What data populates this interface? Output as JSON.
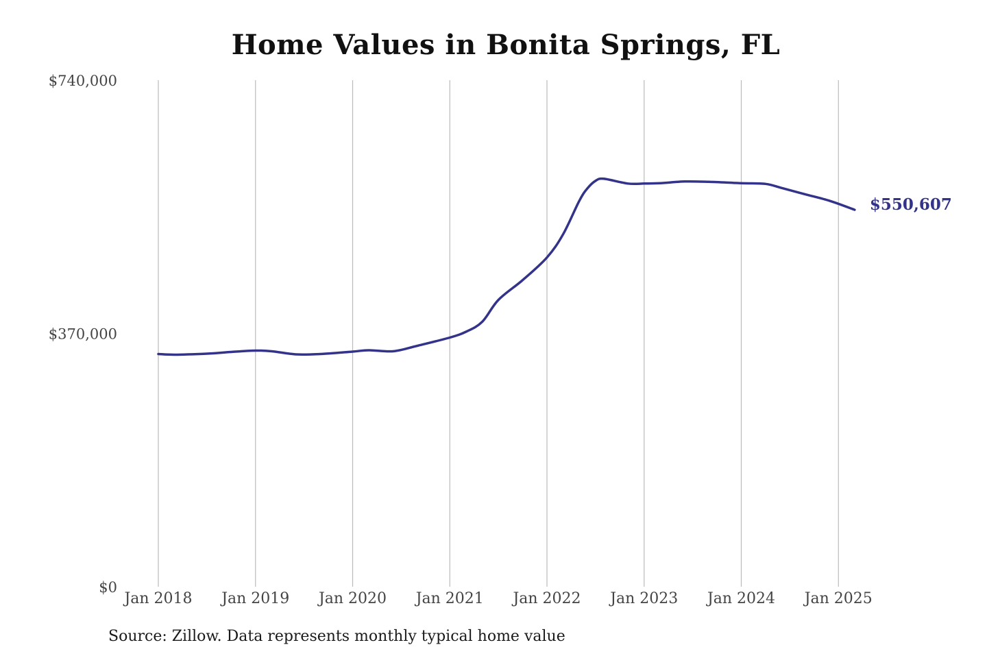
{
  "title": "Home Values in Bonita Springs, FL",
  "source": "Source: Zillow. Data represents monthly typical home value",
  "colors": {
    "line": "#33338a",
    "grid": "#bbbbbb"
  },
  "chart_data": {
    "type": "line",
    "title": "Home Values in Bonita Springs, FL",
    "xlabel": "",
    "ylabel": "",
    "ylim": [
      0,
      740000
    ],
    "y_ticks": [
      {
        "value": 0,
        "label": "$0"
      },
      {
        "value": 370000,
        "label": "$370,000"
      },
      {
        "value": 740000,
        "label": "$740,000"
      }
    ],
    "x_ticks": [
      {
        "value": "2018-01",
        "label": "Jan 2018"
      },
      {
        "value": "2019-01",
        "label": "Jan 2019"
      },
      {
        "value": "2020-01",
        "label": "Jan 2020"
      },
      {
        "value": "2021-01",
        "label": "Jan 2021"
      },
      {
        "value": "2022-01",
        "label": "Jan 2022"
      },
      {
        "value": "2023-01",
        "label": "Jan 2023"
      },
      {
        "value": "2024-01",
        "label": "Jan 2024"
      },
      {
        "value": "2025-01",
        "label": "Jan 2025"
      }
    ],
    "grid": "vertical",
    "end_label": "$550,607",
    "series": [
      {
        "name": "",
        "points": [
          {
            "x": "2018-01",
            "y": 340000
          },
          {
            "x": "2018-03",
            "y": 339000
          },
          {
            "x": "2018-07",
            "y": 340500
          },
          {
            "x": "2018-10",
            "y": 343000
          },
          {
            "x": "2019-01",
            "y": 345000
          },
          {
            "x": "2019-03",
            "y": 344000
          },
          {
            "x": "2019-06",
            "y": 339500
          },
          {
            "x": "2019-09",
            "y": 340000
          },
          {
            "x": "2020-01",
            "y": 343500
          },
          {
            "x": "2020-03",
            "y": 345500
          },
          {
            "x": "2020-06",
            "y": 344000
          },
          {
            "x": "2020-09",
            "y": 352000
          },
          {
            "x": "2021-01",
            "y": 364000
          },
          {
            "x": "2021-03",
            "y": 372500
          },
          {
            "x": "2021-05",
            "y": 387000
          },
          {
            "x": "2021-07",
            "y": 419000
          },
          {
            "x": "2021-10",
            "y": 448000
          },
          {
            "x": "2022-01",
            "y": 481000
          },
          {
            "x": "2022-03",
            "y": 515000
          },
          {
            "x": "2022-05",
            "y": 564000
          },
          {
            "x": "2022-06",
            "y": 582000
          },
          {
            "x": "2022-07",
            "y": 593000
          },
          {
            "x": "2022-08",
            "y": 596000
          },
          {
            "x": "2022-11",
            "y": 589000
          },
          {
            "x": "2023-01",
            "y": 589000
          },
          {
            "x": "2023-03",
            "y": 589500
          },
          {
            "x": "2023-06",
            "y": 592000
          },
          {
            "x": "2023-09",
            "y": 591500
          },
          {
            "x": "2024-01",
            "y": 589500
          },
          {
            "x": "2024-04",
            "y": 588500
          },
          {
            "x": "2024-06",
            "y": 582500
          },
          {
            "x": "2024-09",
            "y": 573000
          },
          {
            "x": "2024-12",
            "y": 563500
          },
          {
            "x": "2025-03",
            "y": 550607
          }
        ]
      }
    ]
  }
}
